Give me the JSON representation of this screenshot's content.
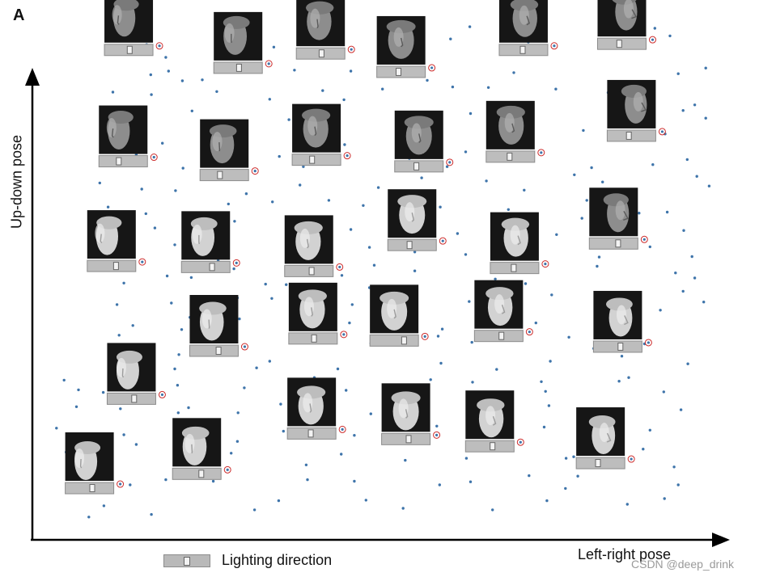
{
  "panel_label": "A",
  "watermark": "CSDN @deep_drink",
  "chart_data": {
    "type": "scatter",
    "title": "",
    "xlabel": "Left-right pose",
    "ylabel": "Up-down pose",
    "xlim": [
      0,
      100
    ],
    "ylim": [
      0,
      100
    ],
    "grid": false,
    "axis_ticks": false,
    "legend": {
      "placement": "bottom-left",
      "entry": "Lighting direction"
    },
    "colors": {
      "points": "#3e74aa",
      "axes": "#000000",
      "marker_ring": "#cc2a2a",
      "slider": "#b9b9b9"
    },
    "faces": [
      {
        "x": 13.3,
        "y": 94.5,
        "lighting": 0.55,
        "shade": "dark",
        "turn": -0.6,
        "tilt": 0.5
      },
      {
        "x": 29.2,
        "y": 91.0,
        "lighting": 0.55,
        "shade": "dark",
        "turn": -0.4,
        "tilt": 0.4
      },
      {
        "x": 41.2,
        "y": 93.8,
        "lighting": 0.55,
        "shade": "dark",
        "turn": -0.2,
        "tilt": 0.5
      },
      {
        "x": 52.9,
        "y": 90.2,
        "lighting": 0.45,
        "shade": "dark",
        "turn": 0.0,
        "tilt": 0.4
      },
      {
        "x": 70.7,
        "y": 94.5,
        "lighting": 0.5,
        "shade": "dark",
        "turn": 0.2,
        "tilt": 0.4
      },
      {
        "x": 85.0,
        "y": 95.7,
        "lighting": 0.45,
        "shade": "dark",
        "turn": 0.6,
        "tilt": 0.5
      },
      {
        "x": 12.5,
        "y": 72.7,
        "lighting": 0.4,
        "shade": "dark",
        "turn": -0.6,
        "tilt": 0.1
      },
      {
        "x": 27.2,
        "y": 70.0,
        "lighting": 0.4,
        "shade": "dark",
        "turn": -0.3,
        "tilt": 0.1
      },
      {
        "x": 40.6,
        "y": 73.0,
        "lighting": 0.4,
        "shade": "dark",
        "turn": -0.1,
        "tilt": 0.2
      },
      {
        "x": 55.5,
        "y": 71.7,
        "lighting": 0.45,
        "shade": "dark",
        "turn": 0.0,
        "tilt": 0.1
      },
      {
        "x": 68.8,
        "y": 73.6,
        "lighting": 0.5,
        "shade": "dark",
        "turn": 0.1,
        "tilt": 0.2
      },
      {
        "x": 86.4,
        "y": 77.7,
        "lighting": 0.45,
        "shade": "dark",
        "turn": 0.6,
        "tilt": 0.2
      },
      {
        "x": 10.8,
        "y": 52.2,
        "lighting": 0.65,
        "shade": "light",
        "turn": -0.6,
        "tilt": -0.1
      },
      {
        "x": 24.5,
        "y": 52.0,
        "lighting": 0.7,
        "shade": "light",
        "turn": -0.4,
        "tilt": -0.1
      },
      {
        "x": 39.5,
        "y": 51.2,
        "lighting": 0.6,
        "shade": "light",
        "turn": -0.1,
        "tilt": -0.1
      },
      {
        "x": 54.5,
        "y": 56.3,
        "lighting": 0.45,
        "shade": "light",
        "turn": 0.0,
        "tilt": 0.0
      },
      {
        "x": 69.4,
        "y": 51.8,
        "lighting": 0.5,
        "shade": "light",
        "turn": 0.2,
        "tilt": 0.0
      },
      {
        "x": 83.8,
        "y": 56.6,
        "lighting": 0.65,
        "shade": "dark",
        "turn": 0.6,
        "tilt": 0.0
      },
      {
        "x": 25.7,
        "y": 35.6,
        "lighting": 0.65,
        "shade": "light",
        "turn": -0.3,
        "tilt": -0.3
      },
      {
        "x": 40.1,
        "y": 38.0,
        "lighting": 0.55,
        "shade": "light",
        "turn": -0.1,
        "tilt": -0.3
      },
      {
        "x": 51.9,
        "y": 37.6,
        "lighting": 0.8,
        "shade": "light",
        "turn": 0.0,
        "tilt": -0.3
      },
      {
        "x": 67.1,
        "y": 38.5,
        "lighting": 0.6,
        "shade": "light",
        "turn": 0.2,
        "tilt": -0.3
      },
      {
        "x": 84.4,
        "y": 36.4,
        "lighting": 0.6,
        "shade": "light",
        "turn": 0.4,
        "tilt": -0.3
      },
      {
        "x": 13.7,
        "y": 26.2,
        "lighting": 0.6,
        "shade": "light",
        "turn": -0.5,
        "tilt": -0.5
      },
      {
        "x": 39.9,
        "y": 19.4,
        "lighting": 0.5,
        "shade": "light",
        "turn": -0.1,
        "tilt": -0.6
      },
      {
        "x": 53.6,
        "y": 18.3,
        "lighting": 0.6,
        "shade": "light",
        "turn": 0.0,
        "tilt": -0.6
      },
      {
        "x": 65.8,
        "y": 16.9,
        "lighting": 0.6,
        "shade": "light",
        "turn": 0.2,
        "tilt": -0.6
      },
      {
        "x": 23.2,
        "y": 11.5,
        "lighting": 0.65,
        "shade": "light",
        "turn": -0.3,
        "tilt": -0.7
      },
      {
        "x": 81.9,
        "y": 13.6,
        "lighting": 0.45,
        "shade": "light",
        "turn": 0.4,
        "tilt": -0.6
      },
      {
        "x": 7.6,
        "y": 8.7,
        "lighting": 0.6,
        "shade": "light",
        "turn": -0.5,
        "tilt": -0.8
      }
    ],
    "points": [
      [
        15.9,
        95.7
      ],
      [
        13.6,
        94.8
      ],
      [
        31.1,
        94.4
      ],
      [
        18.7,
        93.2
      ],
      [
        34.4,
        95.2
      ],
      [
        60.1,
        96.8
      ],
      [
        62.9,
        99.2
      ],
      [
        71.4,
        96.2
      ],
      [
        89.8,
        98.9
      ],
      [
        92.0,
        97.4
      ],
      [
        16.5,
        89.8
      ],
      [
        21.1,
        88.6
      ],
      [
        37.4,
        90.7
      ],
      [
        45.6,
        90.5
      ],
      [
        56.7,
        88.7
      ],
      [
        65.6,
        87.3
      ],
      [
        69.3,
        90.2
      ],
      [
        86.1,
        88.1
      ],
      [
        93.2,
        90.0
      ],
      [
        97.2,
        91.1
      ],
      [
        11.0,
        86.4
      ],
      [
        16.6,
        85.9
      ],
      [
        26.1,
        86.5
      ],
      [
        33.8,
        85.0
      ],
      [
        44.6,
        84.9
      ],
      [
        50.2,
        87.0
      ],
      [
        60.4,
        87.4
      ],
      [
        75.4,
        87.0
      ],
      [
        83.0,
        86.3
      ],
      [
        88.7,
        86.3
      ],
      [
        10.4,
        81.1
      ],
      [
        22.5,
        82.7
      ],
      [
        36.6,
        81.0
      ],
      [
        43.0,
        81.8
      ],
      [
        53.0,
        82.0
      ],
      [
        63.0,
        82.2
      ],
      [
        70.1,
        83.4
      ],
      [
        84.8,
        82.8
      ],
      [
        93.9,
        82.8
      ],
      [
        95.6,
        83.9
      ],
      [
        11.3,
        79.7
      ],
      [
        18.2,
        76.4
      ],
      [
        29.4,
        79.4
      ],
      [
        39.8,
        78.5
      ],
      [
        44.7,
        76.1
      ],
      [
        56.7,
        80.3
      ],
      [
        67.1,
        78.3
      ],
      [
        79.4,
        78.9
      ],
      [
        91.3,
        78.2
      ],
      [
        97.2,
        81.3
      ],
      [
        14.4,
        74.2
      ],
      [
        21.2,
        71.5
      ],
      [
        35.2,
        73.8
      ],
      [
        42.9,
        72.7
      ],
      [
        54.1,
        73.4
      ],
      [
        59.6,
        71.8
      ],
      [
        71.0,
        73.2
      ],
      [
        80.6,
        71.6
      ],
      [
        89.5,
        72.2
      ],
      [
        94.5,
        73.2
      ],
      [
        9.1,
        68.6
      ],
      [
        20.1,
        67.1
      ],
      [
        30.4,
        66.5
      ],
      [
        38.2,
        68.2
      ],
      [
        49.6,
        67.7
      ],
      [
        55.9,
        69.6
      ],
      [
        70.8,
        67.2
      ],
      [
        78.1,
        70.2
      ],
      [
        85.8,
        66.7
      ],
      [
        95.9,
        69.9
      ],
      [
        10.3,
        63.9
      ],
      [
        15.8,
        62.6
      ],
      [
        27.8,
        64.5
      ],
      [
        34.2,
        64.9
      ],
      [
        47.4,
        64.2
      ],
      [
        54.1,
        63.3
      ],
      [
        68.5,
        63.4
      ],
      [
        79.9,
        65.2
      ],
      [
        87.5,
        62.7
      ],
      [
        91.6,
        62.9
      ],
      [
        13.2,
        57.0
      ],
      [
        17.1,
        59.8
      ],
      [
        26.2,
        57.6
      ],
      [
        37.6,
        59.4
      ],
      [
        45.6,
        59.5
      ],
      [
        57.6,
        60.7
      ],
      [
        66.8,
        57.8
      ],
      [
        75.5,
        58.5
      ],
      [
        85.8,
        60.5
      ],
      [
        94.0,
        59.3
      ],
      [
        10.5,
        52.8
      ],
      [
        20.0,
        56.5
      ],
      [
        26.3,
        53.4
      ],
      [
        38.3,
        54.1
      ],
      [
        48.3,
        56.0
      ],
      [
        54.9,
        55.1
      ],
      [
        62.3,
        54.6
      ],
      [
        72.2,
        54.9
      ],
      [
        81.7,
        54.1
      ],
      [
        89.1,
        56.1
      ],
      [
        12.6,
        49.0
      ],
      [
        22.4,
        50.1
      ],
      [
        28.6,
        51.8
      ],
      [
        36.2,
        48.7
      ],
      [
        44.3,
        50.5
      ],
      [
        54.9,
        51.4
      ],
      [
        66.6,
        49.8
      ],
      [
        71.0,
        48.9
      ],
      [
        81.4,
        52.3
      ],
      [
        95.6,
        50.0
      ],
      [
        11.6,
        44.8
      ],
      [
        19.5,
        45.1
      ],
      [
        29.1,
        46.1
      ],
      [
        34.1,
        46.0
      ],
      [
        45.8,
        44.8
      ],
      [
        52.2,
        47.6
      ],
      [
        62.8,
        45.4
      ],
      [
        74.8,
        46.7
      ],
      [
        86.5,
        44.8
      ],
      [
        93.9,
        47.4
      ],
      [
        13.9,
        40.7
      ],
      [
        21.0,
        39.9
      ],
      [
        29.4,
        42.0
      ],
      [
        37.8,
        43.4
      ],
      [
        45.4,
        41.2
      ],
      [
        58.9,
        40.0
      ],
      [
        64.5,
        41.7
      ],
      [
        72.5,
        41.2
      ],
      [
        86.2,
        42.6
      ],
      [
        90.6,
        43.7
      ],
      [
        14.2,
        36.7
      ],
      [
        20.6,
        35.0
      ],
      [
        28.8,
        38.2
      ],
      [
        38.4,
        38.6
      ],
      [
        48.5,
        37.2
      ],
      [
        58.3,
        38.6
      ],
      [
        63.2,
        37.4
      ],
      [
        77.3,
        38.4
      ],
      [
        80.9,
        36.2
      ],
      [
        88.3,
        37.1
      ],
      [
        12.8,
        31.6
      ],
      [
        20.0,
        32.2
      ],
      [
        31.9,
        32.4
      ],
      [
        33.8,
        33.7
      ],
      [
        43.7,
        32.2
      ],
      [
        58.7,
        33.3
      ],
      [
        66.8,
        32.1
      ],
      [
        74.6,
        33.7
      ],
      [
        85.0,
        34.7
      ],
      [
        94.6,
        33.2
      ],
      [
        9.6,
        27.6
      ],
      [
        20.4,
        29.0
      ],
      [
        30.1,
        28.5
      ],
      [
        40.3,
        30.5
      ],
      [
        50.6,
        27.4
      ],
      [
        57.2,
        30.1
      ],
      [
        63.3,
        29.6
      ],
      [
        73.3,
        29.7
      ],
      [
        86.0,
        30.5
      ],
      [
        91.1,
        27.7
      ],
      [
        12.1,
        24.4
      ],
      [
        20.5,
        23.6
      ],
      [
        29.2,
        23.6
      ],
      [
        35.4,
        25.3
      ],
      [
        48.5,
        23.4
      ],
      [
        55.1,
        22.2
      ],
      [
        66.6,
        23.2
      ],
      [
        74.4,
        25.0
      ],
      [
        82.8,
        24.2
      ],
      [
        93.6,
        24.2
      ],
      [
        12.6,
        19.3
      ],
      [
        20.9,
        20.5
      ],
      [
        29.1,
        18.0
      ],
      [
        35.8,
        20.0
      ],
      [
        46.1,
        19.2
      ],
      [
        55.9,
        18.7
      ],
      [
        66.8,
        19.3
      ],
      [
        73.7,
        20.8
      ],
      [
        82.4,
        18.4
      ],
      [
        89.1,
        20.2
      ],
      [
        10.5,
        14.3
      ],
      [
        22.9,
        14.3
      ],
      [
        28.2,
        15.7
      ],
      [
        39.1,
        13.4
      ],
      [
        44.2,
        15.5
      ],
      [
        53.5,
        14.3
      ],
      [
        62.4,
        14.7
      ],
      [
        76.9,
        14.7
      ],
      [
        78.0,
        15.0
      ],
      [
        92.6,
        13.0
      ],
      [
        13.5,
        9.5
      ],
      [
        18.7,
        10.5
      ],
      [
        25.6,
        10.2
      ],
      [
        39.3,
        10.5
      ],
      [
        46.1,
        10.2
      ],
      [
        58.5,
        9.5
      ],
      [
        63.0,
        10.1
      ],
      [
        71.5,
        11.3
      ],
      [
        78.6,
        11.2
      ],
      [
        93.2,
        9.5
      ],
      [
        9.7,
        5.4
      ],
      [
        16.6,
        3.7
      ],
      [
        31.6,
        4.6
      ],
      [
        35.1,
        6.4
      ],
      [
        47.8,
        6.5
      ],
      [
        53.2,
        4.9
      ],
      [
        66.2,
        4.6
      ],
      [
        74.1,
        6.4
      ],
      [
        85.8,
        5.7
      ],
      [
        91.2,
        6.8
      ],
      [
        19.1,
        90.5
      ],
      [
        41.5,
        86.7
      ],
      [
        38.7,
        71.8
      ],
      [
        22.2,
        42.3
      ],
      [
        11.9,
        38.8
      ],
      [
        82.2,
        68.8
      ],
      [
        58.1,
        21.0
      ],
      [
        73.9,
        27.8
      ],
      [
        61.1,
        58.7
      ],
      [
        37.3,
        57.9
      ],
      [
        14.4,
        17.4
      ],
      [
        44.9,
        28.0
      ],
      [
        79.2,
        61.7
      ],
      [
        15.2,
        67.4
      ],
      [
        65.3,
        69.0
      ],
      [
        51.0,
        94.4
      ],
      [
        24.0,
        88.8
      ],
      [
        70.1,
        56.4
      ],
      [
        97.7,
        68.0
      ],
      [
        48.3,
        48.1
      ],
      [
        2.8,
        20.6
      ],
      [
        4.2,
        15.9
      ],
      [
        5.7,
        24.8
      ],
      [
        6.0,
        28.1
      ],
      [
        3.9,
        30.0
      ],
      [
        7.5,
        3.2
      ],
      [
        92.8,
        51.0
      ],
      [
        95.2,
        54.2
      ],
      [
        96.9,
        45.3
      ],
      [
        33.2,
        48.8
      ],
      [
        28.7,
        61.1
      ],
      [
        58.6,
        63.9
      ],
      [
        62.3,
        74.7
      ],
      [
        49.0,
        52.5
      ],
      [
        42.4,
        65.2
      ],
      [
        22.0,
        24.6
      ],
      [
        18.9,
        50.4
      ],
      [
        84.6,
        29.8
      ],
      [
        88.1,
        16.5
      ],
      [
        76.8,
        8.8
      ]
    ]
  }
}
